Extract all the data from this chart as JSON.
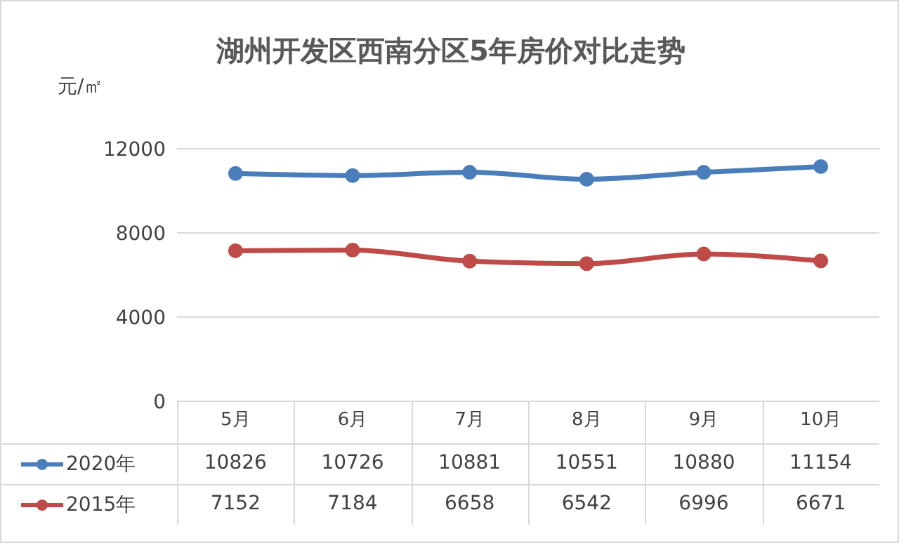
{
  "chart_data": {
    "type": "line",
    "title": "湖州开发区西南分区5年房价对比走势",
    "ylabel": "元/㎡",
    "categories": [
      "5月",
      "6月",
      "7月",
      "8月",
      "9月",
      "10月"
    ],
    "series": [
      {
        "name": "2020年",
        "color": "#4a7ebb",
        "values": [
          10826,
          10726,
          10881,
          10551,
          10880,
          11154
        ]
      },
      {
        "name": "2015年",
        "color": "#be4b48",
        "values": [
          7152,
          7184,
          6658,
          6542,
          6996,
          6671
        ]
      }
    ],
    "ylim": [
      0,
      12000
    ],
    "yticks": [
      0,
      4000,
      8000,
      12000
    ],
    "grid": "y",
    "legend": "bottom",
    "marker": "circle",
    "line_style": "solid",
    "data_labels": true
  }
}
